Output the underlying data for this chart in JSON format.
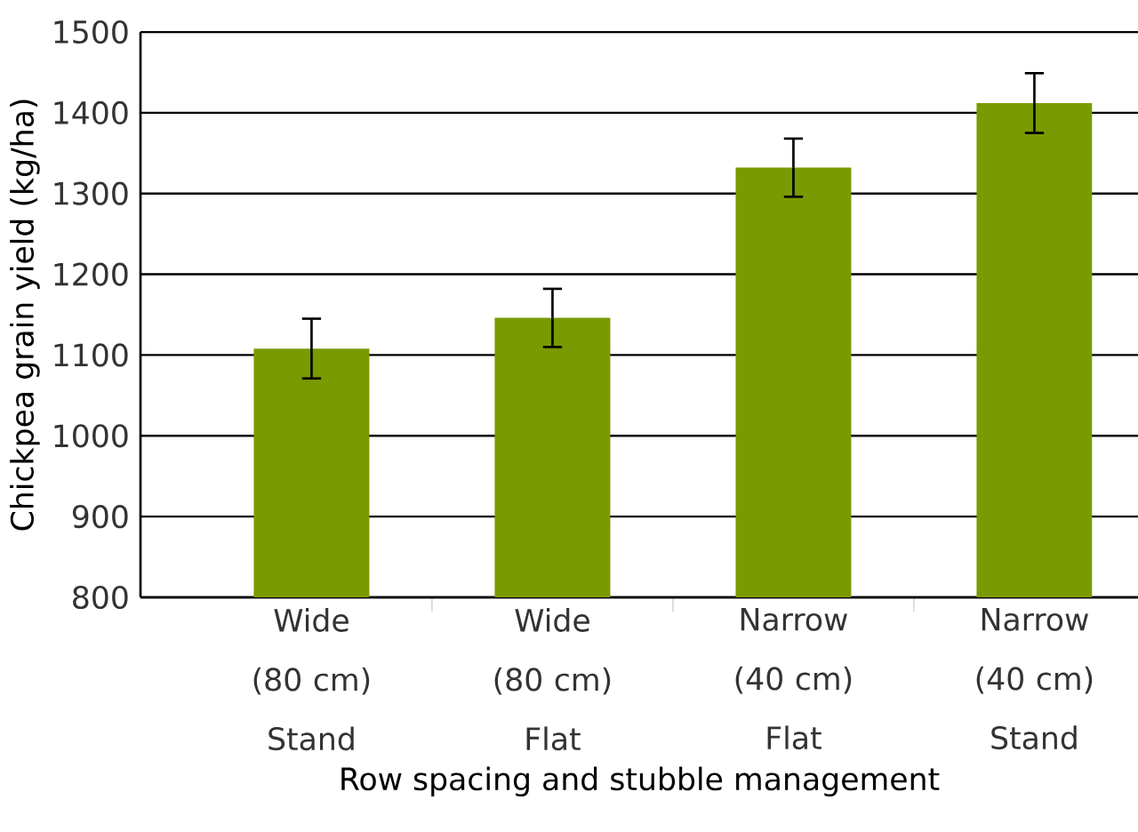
{
  "chart_data": {
    "type": "bar",
    "xlabel": "Row spacing and stubble management",
    "ylabel": "Chickpea grain yield (kg/ha)",
    "categories": [
      "Wide (80 cm) Stand",
      "Wide (80 cm) Flat",
      "Narrow (40 cm) Flat",
      "Narrow (40 cm) Stand"
    ],
    "values": [
      1108,
      1146,
      1332,
      1412
    ],
    "errors": [
      37,
      36,
      36,
      37
    ],
    "color": "#7a9a01",
    "ylim": [
      800,
      1500
    ],
    "yticks": [
      800,
      900,
      1000,
      1100,
      1200,
      1300,
      1400,
      1500
    ],
    "grid": "y"
  }
}
